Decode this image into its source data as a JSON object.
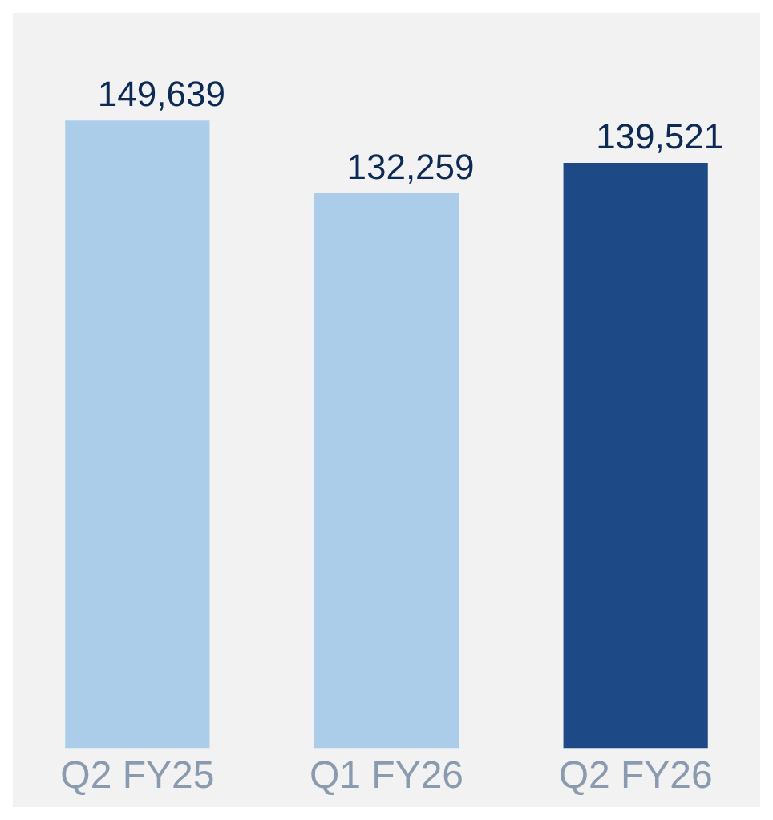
{
  "chart_data": {
    "type": "bar",
    "categories": [
      "Q2 FY25",
      "Q1 FY26",
      "Q2 FY26"
    ],
    "values": [
      149639,
      132259,
      139521
    ],
    "colors": [
      "#abcde9",
      "#abcde9",
      "#1d4a86"
    ],
    "value_labels": [
      "149,639",
      "132,259",
      "139,521"
    ],
    "grid": false,
    "legend": false,
    "tick_labels": "x"
  }
}
